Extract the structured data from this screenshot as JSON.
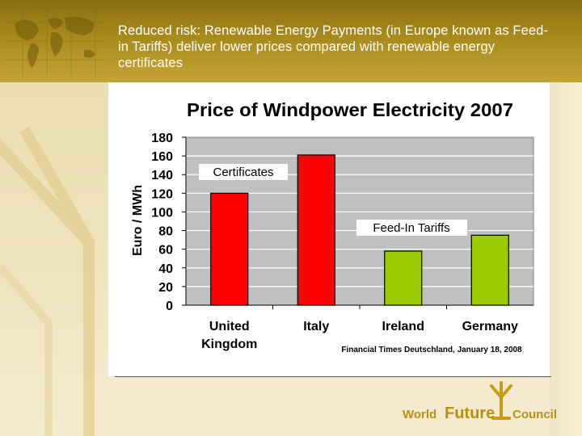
{
  "slide": {
    "header_title": "Reduced risk: Renewable Energy Payments (in Europe known as Feed-in Tariffs) deliver lower prices compared with renewable energy certificates",
    "logo": {
      "word1": "World",
      "word2": "Future",
      "word3": "Council"
    },
    "colors": {
      "header": "#a88a1c",
      "certificates": "#ff0000",
      "feed_in": "#99cc00",
      "plot_bg": "#c0c0c0"
    }
  },
  "chart_data": {
    "type": "bar",
    "title": "Price of Windpower Electricity 2007",
    "ylabel": "Euro / MWh",
    "xlabel": "",
    "ylim": [
      0,
      180
    ],
    "yticks": [
      "0",
      "20",
      "40",
      "60",
      "80",
      "100",
      "120",
      "140",
      "160",
      "180"
    ],
    "categories": [
      [
        "United",
        "Kingdom"
      ],
      [
        "Italy"
      ],
      [
        "Ireland"
      ],
      [
        "Germany"
      ]
    ],
    "values": [
      120,
      161,
      58,
      75
    ],
    "bar_colors": [
      "#ff0000",
      "#ff0000",
      "#99cc00",
      "#99cc00"
    ],
    "grid": true,
    "annotations": {
      "certificates": "Certificates",
      "feed_in": "Feed-In Tariffs",
      "source": "Financial Times Deutschland, January 18, 2008"
    }
  }
}
